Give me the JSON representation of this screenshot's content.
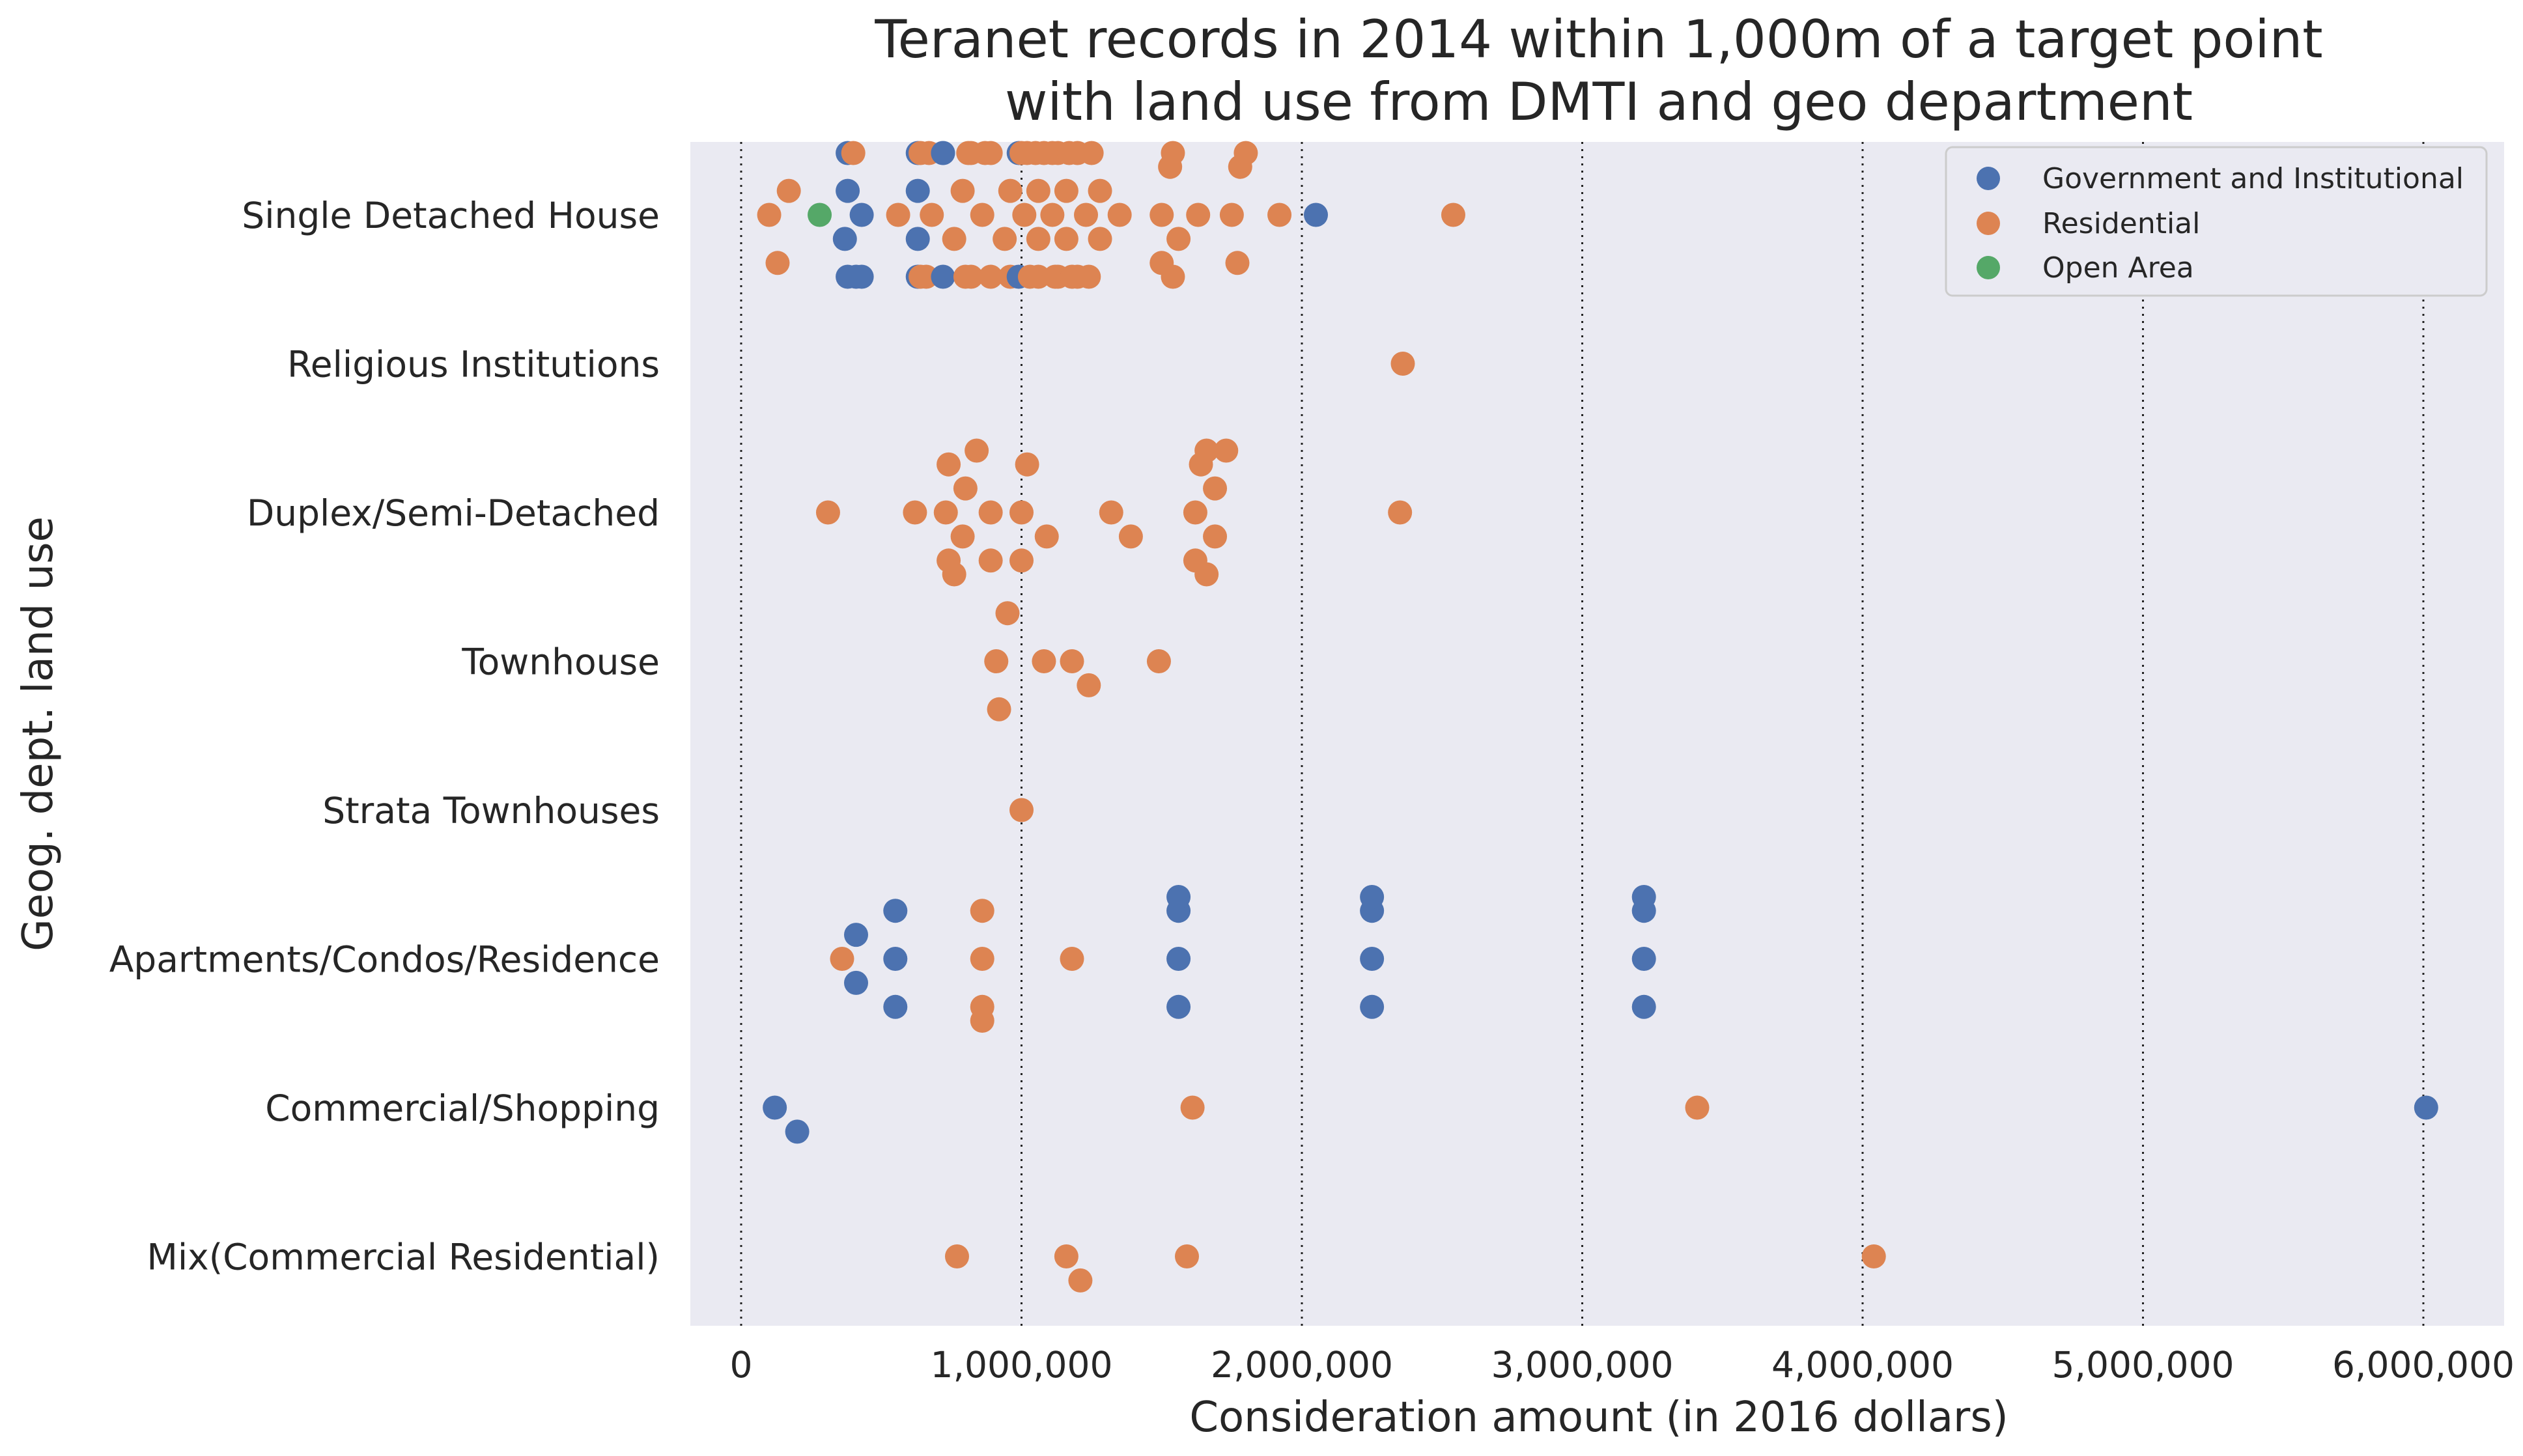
{
  "chart_data": {
    "type": "scatter",
    "subtype": "swarm",
    "title": [
      "Teranet records in 2014 within 1,000m of a target point",
      "with land use from DMTI and geo department"
    ],
    "xlabel": "Consideration amount (in 2016 dollars)",
    "ylabel": "Geog. dept. land use",
    "xlim": [
      -180000,
      6300000
    ],
    "x_ticks": [
      0,
      1000000,
      2000000,
      3000000,
      4000000,
      5000000,
      6000000
    ],
    "x_tick_labels": [
      "0",
      "1,000,000",
      "2,000,000",
      "3,000,000",
      "4,000,000",
      "5,000,000",
      "6,000,000"
    ],
    "categories": [
      "Single Detached House",
      "Religious Institutions",
      "Duplex/Semi-Detached",
      "Townhouse",
      "Strata Townhouses",
      "Apartments/Condos/Residence",
      "Commercial/Shopping",
      "Mix(Commercial Residential)"
    ],
    "grid": "vertical dotted lines at x ticks",
    "background": "#eaeaf2",
    "legend": {
      "position": "top-right",
      "entries": [
        {
          "label": "Government and Institutional",
          "color": "#4c72b0"
        },
        {
          "label": "Residential",
          "color": "#dd8452"
        },
        {
          "label": "Open Area",
          "color": "#55a868"
        }
      ]
    },
    "points": [
      {
        "category": "Single Detached House",
        "series": "Government and Institutional",
        "x": [
          380000,
          410000,
          430000,
          370000,
          380000,
          630000,
          720000,
          630000,
          720000,
          630000,
          720000,
          990000,
          380000,
          430000,
          630000,
          990000,
          2050000
        ]
      },
      {
        "category": "Single Detached House",
        "series": "Residential",
        "x": [
          400000,
          660000,
          800000,
          820000,
          870000,
          960000,
          1130000,
          1180000,
          1200000,
          1080000,
          1280000,
          1560000,
          1230000,
          1500000,
          1160000,
          1050000,
          1020000,
          890000,
          820000,
          130000,
          1200000,
          1280000,
          1350000,
          1780000,
          640000,
          680000,
          940000,
          1010000,
          1110000,
          1500000,
          1630000,
          1750000,
          1920000,
          2540000,
          100000,
          560000,
          1060000,
          1240000,
          1530000,
          860000,
          1130000,
          170000,
          760000,
          1770000,
          1540000,
          1250000,
          1030000,
          890000,
          1120000,
          1060000,
          1160000,
          790000,
          1800000,
          960000,
          1540000,
          640000,
          670000,
          810000,
          1000000,
          1060000,
          1110000,
          1170000
        ]
      },
      {
        "category": "Single Detached House",
        "series": "Open Area",
        "x": [
          280000
        ]
      },
      {
        "category": "Religious Institutions",
        "series": "Residential",
        "x": [
          2360000
        ]
      },
      {
        "category": "Duplex/Semi-Detached",
        "series": "Residential",
        "x": [
          1690000,
          760000,
          1660000,
          730000,
          890000,
          1000000,
          1390000,
          1620000,
          1090000,
          310000,
          620000,
          740000,
          840000,
          1000000,
          1320000,
          1620000,
          1730000,
          2350000,
          740000,
          890000,
          1020000,
          1640000,
          790000,
          1660000,
          800000,
          1690000
        ]
      },
      {
        "category": "Townhouse",
        "series": "Residential",
        "x": [
          950000,
          1240000,
          910000,
          1080000,
          1180000,
          1490000,
          920000
        ]
      },
      {
        "category": "Strata Townhouses",
        "series": "Residential",
        "x": [
          1000000
        ]
      },
      {
        "category": "Apartments/Condos/Residence",
        "series": "Government and Institutional",
        "x": [
          1560000,
          2250000,
          3220000,
          410000,
          550000,
          1560000,
          2250000,
          3220000,
          550000,
          1560000,
          2250000,
          3220000,
          410000,
          550000,
          1560000,
          2250000,
          3220000
        ]
      },
      {
        "category": "Apartments/Condos/Residence",
        "series": "Residential",
        "x": [
          860000,
          860000,
          360000,
          860000,
          1180000,
          860000
        ]
      },
      {
        "category": "Commercial/Shopping",
        "series": "Government and Institutional",
        "x": [
          200000,
          120000,
          6010000
        ]
      },
      {
        "category": "Commercial/Shopping",
        "series": "Residential",
        "x": [
          1610000,
          3410000
        ]
      },
      {
        "category": "Mix(Commercial Residential)",
        "series": "Residential",
        "x": [
          1210000,
          770000,
          1160000,
          1590000,
          4040000
        ]
      }
    ]
  }
}
